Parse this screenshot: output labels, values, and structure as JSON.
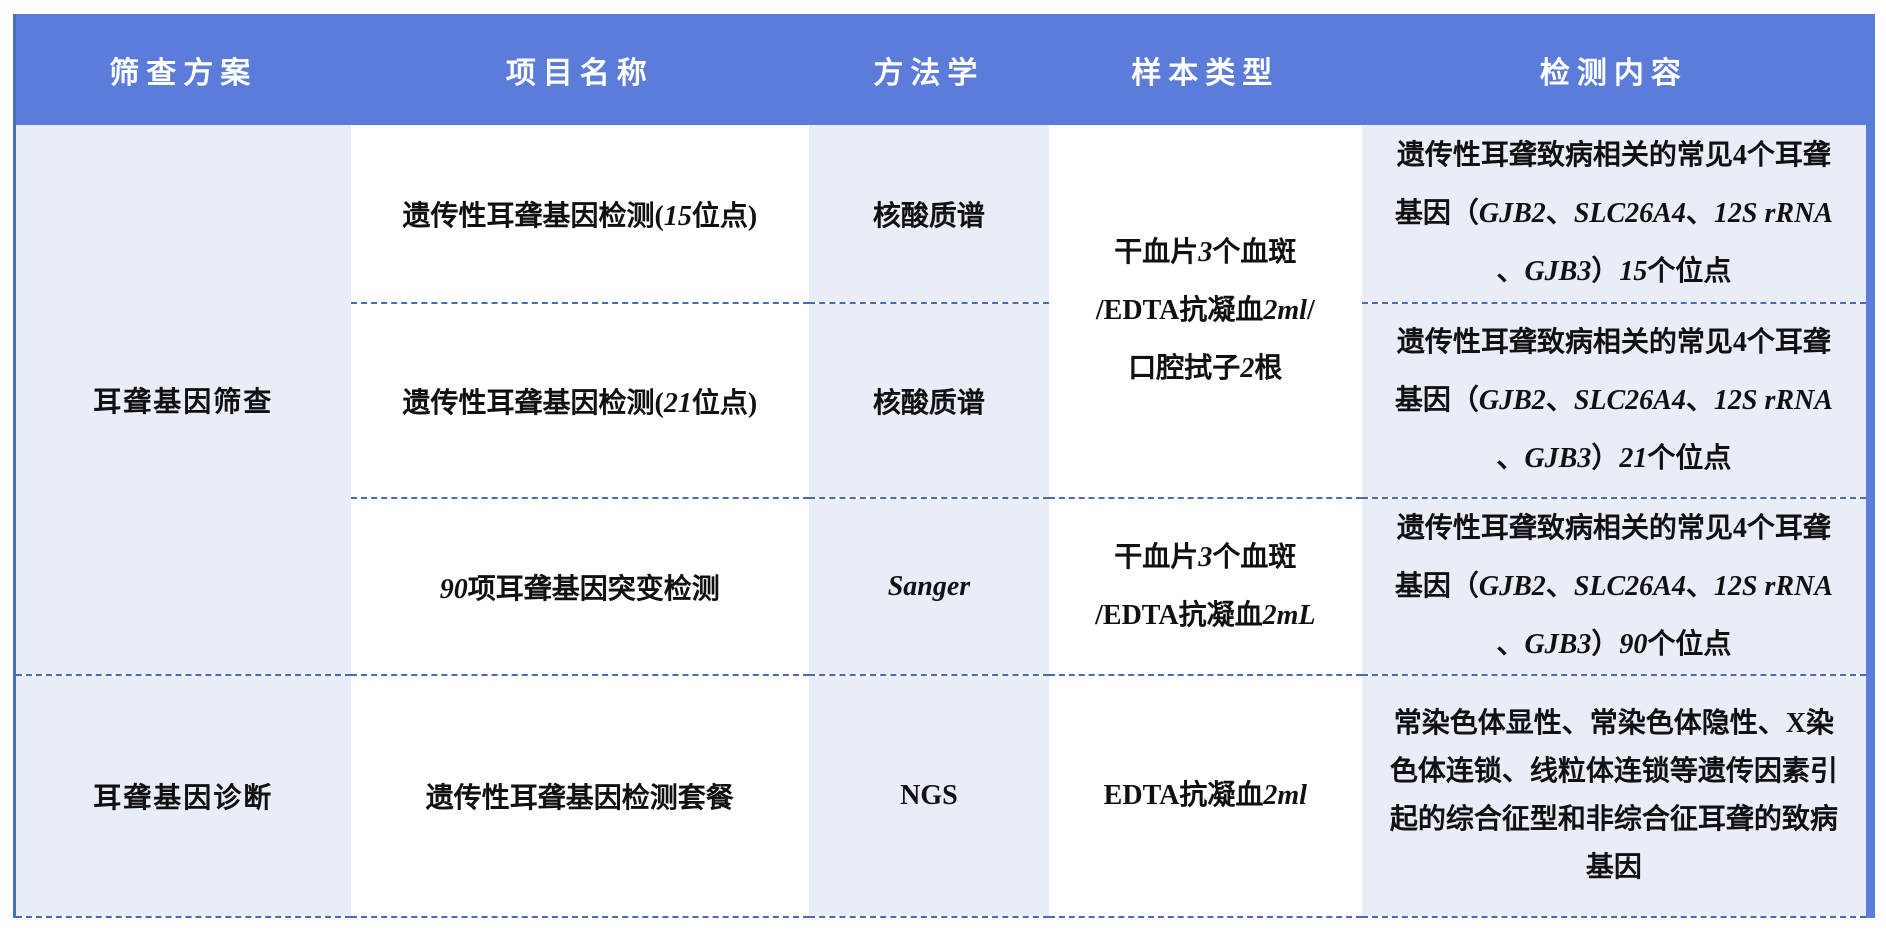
{
  "table": {
    "headers": [
      "筛查方案",
      "项目名称",
      "方法学",
      "样本类型",
      "检测内容"
    ],
    "groups": [
      {
        "plan": "耳聋基因筛查"
      },
      {
        "plan": "耳聋基因诊断"
      }
    ],
    "rows": [
      {
        "name": [
          {
            "t": "遗传性耳聋基因检测("
          },
          {
            "t": "15",
            "i": true
          },
          {
            "t": "位点)"
          }
        ],
        "method": [
          {
            "t": "核酸质谱"
          }
        ],
        "sample": [
          {
            "t": "干血片"
          },
          {
            "t": "3",
            "i": true
          },
          {
            "t": "个血斑"
          },
          {
            "br": true
          },
          {
            "t": "/EDTA抗凝血"
          },
          {
            "t": "2ml",
            "i": true
          },
          {
            "t": "/"
          },
          {
            "br": true
          },
          {
            "t": "口腔拭子"
          },
          {
            "t": "2",
            "i": true
          },
          {
            "t": "根"
          }
        ],
        "content": [
          {
            "t": "遗传性耳聋致病相关的常见4个耳聋"
          },
          {
            "br": true
          },
          {
            "t": "基因（"
          },
          {
            "t": "GJB2",
            "i": true
          },
          {
            "t": "、"
          },
          {
            "t": "SLC26A4",
            "i": true
          },
          {
            "t": "、"
          },
          {
            "t": "12S rRNA",
            "i": true
          },
          {
            "br": true
          },
          {
            "t": "、"
          },
          {
            "t": "GJB3",
            "i": true
          },
          {
            "t": "）"
          },
          {
            "t": "15",
            "i": true
          },
          {
            "t": "个位点"
          }
        ]
      },
      {
        "name": [
          {
            "t": "遗传性耳聋基因检测("
          },
          {
            "t": "21",
            "i": true
          },
          {
            "t": "位点)"
          }
        ],
        "method": [
          {
            "t": "核酸质谱"
          }
        ],
        "content": [
          {
            "t": "遗传性耳聋致病相关的常见4个耳聋"
          },
          {
            "br": true
          },
          {
            "t": "基因（"
          },
          {
            "t": "GJB2",
            "i": true
          },
          {
            "t": "、"
          },
          {
            "t": "SLC26A4",
            "i": true
          },
          {
            "t": "、"
          },
          {
            "t": "12S rRNA",
            "i": true
          },
          {
            "br": true
          },
          {
            "t": "、"
          },
          {
            "t": "GJB3",
            "i": true
          },
          {
            "t": "）"
          },
          {
            "t": "21",
            "i": true
          },
          {
            "t": "个位点"
          }
        ]
      },
      {
        "name": [
          {
            "t": "90",
            "i": true
          },
          {
            "t": "项耳聋基因突变检测"
          }
        ],
        "method": [
          {
            "t": "Sanger",
            "i": true
          }
        ],
        "sample": [
          {
            "t": "干血片"
          },
          {
            "t": "3",
            "i": true
          },
          {
            "t": "个血斑"
          },
          {
            "br": true
          },
          {
            "t": "/EDTA抗凝血"
          },
          {
            "t": "2mL",
            "i": true
          }
        ],
        "content": [
          {
            "t": "遗传性耳聋致病相关的常见4个耳聋"
          },
          {
            "br": true
          },
          {
            "t": "基因（"
          },
          {
            "t": "GJB2",
            "i": true
          },
          {
            "t": "、"
          },
          {
            "t": "SLC26A4",
            "i": true
          },
          {
            "t": "、"
          },
          {
            "t": "12S rRNA",
            "i": true
          },
          {
            "br": true
          },
          {
            "t": "、"
          },
          {
            "t": "GJB3",
            "i": true
          },
          {
            "t": "）"
          },
          {
            "t": "90",
            "i": true
          },
          {
            "t": "个位点"
          }
        ]
      },
      {
        "name": [
          {
            "t": "遗传性耳聋基因检测套餐"
          }
        ],
        "method": [
          {
            "t": "NGS"
          }
        ],
        "sample": [
          {
            "t": "EDTA抗凝血"
          },
          {
            "t": "2ml",
            "i": true
          }
        ],
        "content": [
          {
            "t": "常染色体显性、常染色体隐性、X染"
          },
          {
            "br": true
          },
          {
            "t": "色体连锁、线粒体连锁等遗传因素引"
          },
          {
            "br": true
          },
          {
            "t": "起的综合征型和非综合征耳聋的致病"
          },
          {
            "br": true
          },
          {
            "t": "基因"
          }
        ]
      }
    ],
    "colors": {
      "header_bg": "#5b7cd8",
      "band_bg": "#e9edf8",
      "dash_border": "#4a6bb5",
      "left_border": "#4a6fc0",
      "header_text": "#ffffff",
      "body_text": "#111111"
    }
  }
}
